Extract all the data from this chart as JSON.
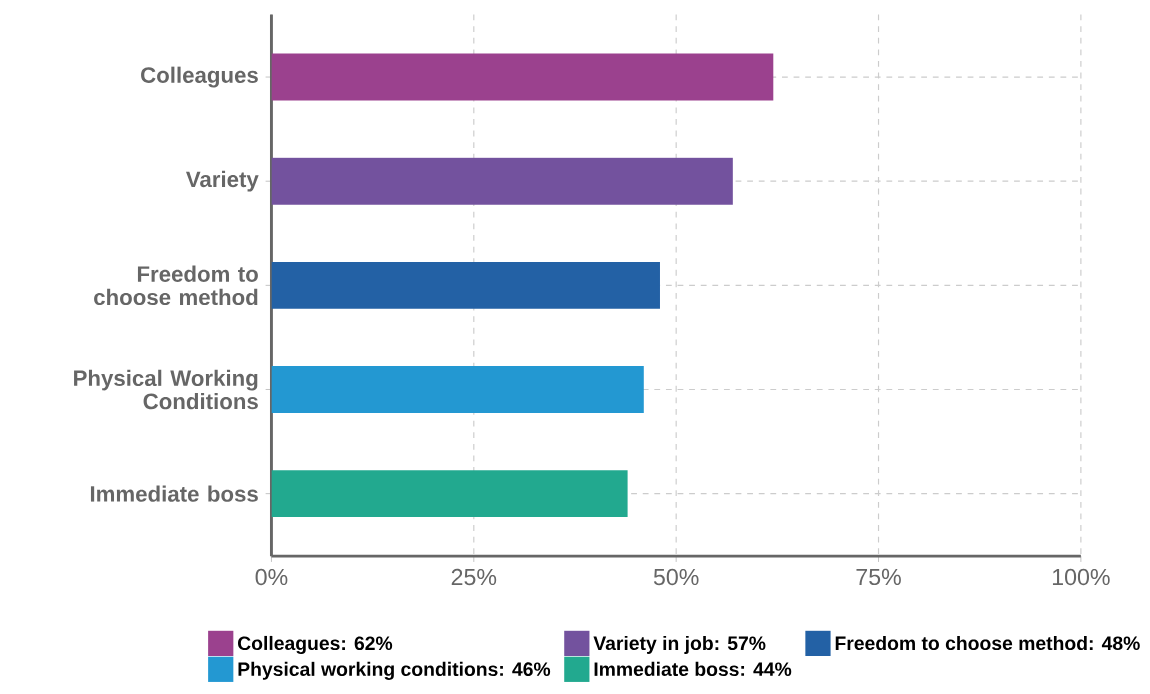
{
  "chart_data": {
    "type": "bar",
    "orientation": "horizontal",
    "categories": [
      "Colleagues",
      "Variety",
      "Freedom to choose method",
      "Physical Working Conditions",
      "Immediate boss"
    ],
    "series": [
      {
        "name": "Colleagues: 62%",
        "color": "#9b418e",
        "values": [
          62,
          null,
          null,
          null,
          null
        ]
      },
      {
        "name": "Variety in job: 57%",
        "color": "#73529e",
        "values": [
          null,
          57,
          null,
          null,
          null
        ]
      },
      {
        "name": "Freedom to choose method: 48%",
        "color": "#2361a5",
        "values": [
          null,
          null,
          48,
          null,
          null
        ]
      },
      {
        "name": "Physical working conditions: 46%",
        "color": "#2398d2",
        "values": [
          null,
          null,
          null,
          46,
          null
        ]
      },
      {
        "name": "Immediate boss: 44%",
        "color": "#22a98f",
        "values": [
          null,
          null,
          null,
          null,
          44
        ]
      }
    ],
    "xlim": [
      0,
      100
    ],
    "xticks": [
      {
        "value": 0,
        "label": "0%"
      },
      {
        "value": 25,
        "label": "25%"
      },
      {
        "value": 50,
        "label": "50%"
      },
      {
        "value": 75,
        "label": "75%"
      },
      {
        "value": 100,
        "label": "100%"
      }
    ],
    "grid": true,
    "legend": "bottom"
  }
}
